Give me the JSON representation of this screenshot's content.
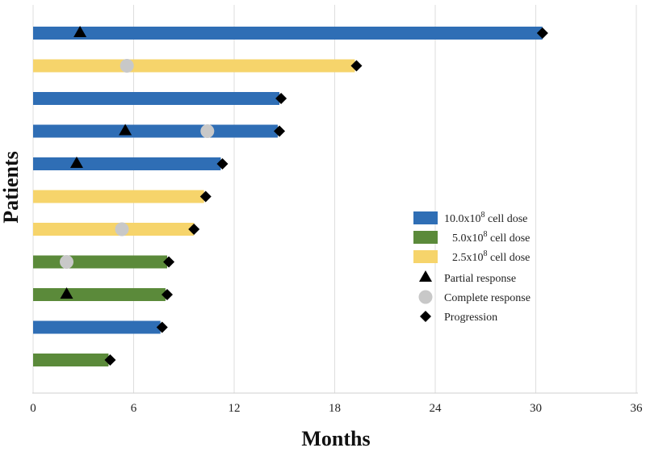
{
  "chart_data": {
    "type": "bar",
    "orientation": "horizontal",
    "title": "",
    "xlabel": "Months",
    "ylabel": "Patients",
    "xlim": [
      0,
      36
    ],
    "xticks": [
      0,
      6,
      12,
      18,
      24,
      30,
      36
    ],
    "grid": "vertical",
    "colors": {
      "10.0x10^8 cell dose": "#2f6eb5",
      "5.0x10^8 cell dose": "#5b8a3a",
      "2.5x10^8 cell dose": "#f6d46b",
      "marker": "#000000",
      "complete_marker": "#c8c8c8"
    },
    "patients": [
      {
        "dose": "10.0x10^8 cell dose",
        "duration": 30.4,
        "partial_response": 2.8,
        "complete_response": null,
        "progression": 30.4
      },
      {
        "dose": "2.5x10^8 cell dose",
        "duration": 19.2,
        "partial_response": null,
        "complete_response": 5.6,
        "progression": 19.3
      },
      {
        "dose": "10.0x10^8 cell dose",
        "duration": 14.7,
        "partial_response": null,
        "complete_response": null,
        "progression": 14.8
      },
      {
        "dose": "10.0x10^8 cell dose",
        "duration": 14.6,
        "partial_response": 5.5,
        "complete_response": 10.4,
        "progression": 14.7
      },
      {
        "dose": "10.0x10^8 cell dose",
        "duration": 11.2,
        "partial_response": 2.6,
        "complete_response": null,
        "progression": 11.3
      },
      {
        "dose": "2.5x10^8 cell dose",
        "duration": 10.2,
        "partial_response": null,
        "complete_response": null,
        "progression": 10.3
      },
      {
        "dose": "2.5x10^8 cell dose",
        "duration": 9.6,
        "partial_response": null,
        "complete_response": 5.3,
        "progression": 9.6
      },
      {
        "dose": "5.0x10^8 cell dose",
        "duration": 8.0,
        "partial_response": null,
        "complete_response": 2.0,
        "progression": 8.1
      },
      {
        "dose": "5.0x10^8 cell dose",
        "duration": 7.9,
        "partial_response": 2.0,
        "complete_response": null,
        "progression": 8.0
      },
      {
        "dose": "10.0x10^8 cell dose",
        "duration": 7.6,
        "partial_response": null,
        "complete_response": null,
        "progression": 7.7
      },
      {
        "dose": "5.0x10^8 cell dose",
        "duration": 4.5,
        "partial_response": null,
        "complete_response": null,
        "progression": 4.6
      }
    ],
    "legend": {
      "position": "right-lower",
      "doses": [
        {
          "key": "10.0x10^8 cell dose",
          "prefix": "10.0x10",
          "exponent": "8",
          "suffix": " cell dose"
        },
        {
          "key": "5.0x10^8 cell dose",
          "prefix": "5.0x10",
          "exponent": "8",
          "suffix": " cell dose"
        },
        {
          "key": "2.5x10^8 cell dose",
          "prefix": "2.5x10",
          "exponent": "8",
          "suffix": " cell dose"
        }
      ],
      "markers": [
        {
          "shape": "triangle",
          "label": "Partial response"
        },
        {
          "shape": "circle",
          "label": "Complete response"
        },
        {
          "shape": "diamond",
          "label": "Progression"
        }
      ]
    }
  }
}
